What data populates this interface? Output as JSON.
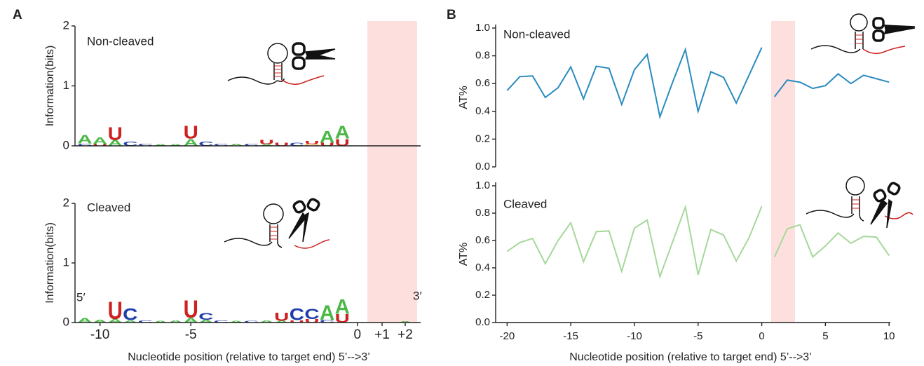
{
  "chart_data": [
    {
      "type": "logo",
      "panel": "A",
      "title": "Non-cleaved",
      "ylabel": "Information(bits)",
      "ylim": [
        0,
        2
      ],
      "yticks": [
        0,
        1,
        2
      ],
      "letter_colors": {
        "A": "#4cb848",
        "C": "#1f3fa8",
        "G": "#f5a623",
        "U": "#cc2222"
      },
      "columns": [
        {
          "letters": [
            "C",
            "A"
          ],
          "heights": [
            0.04,
            0.15
          ]
        },
        {
          "letters": [
            "U",
            "A"
          ],
          "heights": [
            0.03,
            0.12
          ]
        },
        {
          "letters": [
            "A",
            "U"
          ],
          "heights": [
            0.1,
            0.22
          ]
        },
        {
          "letters": [
            "C"
          ],
          "heights": [
            0.07
          ]
        },
        {
          "letters": [
            "C"
          ],
          "heights": [
            0.04
          ]
        },
        {
          "letters": [
            "A"
          ],
          "heights": [
            0.03
          ]
        },
        {
          "letters": [
            "A"
          ],
          "heights": [
            0.03
          ]
        },
        {
          "letters": [
            "A",
            "U"
          ],
          "heights": [
            0.12,
            0.22
          ]
        },
        {
          "letters": [
            "C"
          ],
          "heights": [
            0.07
          ]
        },
        {
          "letters": [
            "C"
          ],
          "heights": [
            0.04
          ]
        },
        {
          "letters": [
            "A"
          ],
          "heights": [
            0.04
          ]
        },
        {
          "letters": [
            "C"
          ],
          "heights": [
            0.04
          ]
        },
        {
          "letters": [
            "A",
            "U"
          ],
          "heights": [
            0.03,
            0.07
          ]
        },
        {
          "letters": [
            "U"
          ],
          "heights": [
            0.05
          ]
        },
        {
          "letters": [
            "C"
          ],
          "heights": [
            0.05
          ]
        },
        {
          "letters": [
            "G",
            "U"
          ],
          "heights": [
            0.03,
            0.05
          ]
        },
        {
          "letters": [
            "U",
            "A"
          ],
          "heights": [
            0.05,
            0.2
          ]
        },
        {
          "letters": [
            "U",
            "A"
          ],
          "heights": [
            0.12,
            0.22
          ]
        },
        {
          "letters": [],
          "heights": []
        },
        {
          "letters": [],
          "heights": []
        },
        {
          "letters": [],
          "heights": []
        }
      ]
    },
    {
      "type": "logo",
      "title": "Cleaved",
      "ylabel": "Information(bits)",
      "ylim": [
        0,
        2
      ],
      "yticks": [
        0,
        1,
        2
      ],
      "five_prime": "5′",
      "three_prime": "3′",
      "xlabel": "Nucleotide position (relative to target end) 5’-->3’",
      "letter_colors": {
        "A": "#4cb848",
        "C": "#1f3fa8",
        "G": "#f5a623",
        "U": "#cc2222"
      },
      "categories": [
        null,
        "-10",
        null,
        null,
        null,
        null,
        null,
        "-5",
        null,
        null,
        null,
        null,
        null,
        null,
        null,
        null,
        null,
        null,
        "0",
        "+1",
        "+2"
      ],
      "columns": [
        {
          "letters": [
            "A"
          ],
          "heights": [
            0.08
          ]
        },
        {
          "letters": [
            "A"
          ],
          "heights": [
            0.05
          ]
        },
        {
          "letters": [
            "A",
            "U"
          ],
          "heights": [
            0.06,
            0.3
          ]
        },
        {
          "letters": [
            "A",
            "C"
          ],
          "heights": [
            0.04,
            0.2
          ]
        },
        {
          "letters": [
            "C"
          ],
          "heights": [
            0.04
          ]
        },
        {
          "letters": [
            "A"
          ],
          "heights": [
            0.03
          ]
        },
        {
          "letters": [
            "A"
          ],
          "heights": [
            0.04
          ]
        },
        {
          "letters": [
            "A",
            "U"
          ],
          "heights": [
            0.08,
            0.3
          ]
        },
        {
          "letters": [
            "A",
            "C"
          ],
          "heights": [
            0.05,
            0.12
          ]
        },
        {
          "letters": [
            "C"
          ],
          "heights": [
            0.04
          ]
        },
        {
          "letters": [
            "A"
          ],
          "heights": [
            0.03
          ]
        },
        {
          "letters": [
            "C"
          ],
          "heights": [
            0.03
          ]
        },
        {
          "letters": [
            "A"
          ],
          "heights": [
            0.04
          ]
        },
        {
          "letters": [
            "A",
            "U"
          ],
          "heights": [
            0.03,
            0.14
          ]
        },
        {
          "letters": [
            "U",
            "C"
          ],
          "heights": [
            0.04,
            0.2
          ]
        },
        {
          "letters": [
            "U",
            "C"
          ],
          "heights": [
            0.06,
            0.18
          ]
        },
        {
          "letters": [
            "C",
            "A"
          ],
          "heights": [
            0.05,
            0.25
          ]
        },
        {
          "letters": [
            "U",
            "A"
          ],
          "heights": [
            0.15,
            0.25
          ]
        },
        {
          "letters": [],
          "heights": []
        },
        {
          "letters": [],
          "heights": []
        },
        {
          "letters": [
            "A"
          ],
          "heights": [
            0.02
          ]
        }
      ]
    },
    {
      "type": "line",
      "panel": "B",
      "title": "Non-cleaved",
      "ylabel": "AT%",
      "xlim": [
        -20.9,
        10.1
      ],
      "ylim": [
        0,
        1
      ],
      "yticks": [
        {
          "value": 0,
          "label": "0.0"
        },
        {
          "value": 0.2,
          "label": "0.2"
        },
        {
          "value": 0.4,
          "label": "0.4"
        },
        {
          "value": 0.6,
          "label": "0.6"
        },
        {
          "value": 0.8,
          "label": "0.8"
        },
        {
          "value": 1,
          "label": "1.0"
        }
      ],
      "series": [
        {
          "color": "#2a8bbf",
          "x": [
            -20,
            -19,
            -18,
            -17,
            -16,
            -15,
            -14,
            -13,
            -12,
            -11,
            -10,
            -9,
            -8,
            -7,
            -6,
            -5,
            -4,
            -3,
            -2,
            -1,
            0
          ],
          "values": [
            0.55,
            0.65,
            0.655,
            0.5,
            0.57,
            0.72,
            0.49,
            0.725,
            0.71,
            0.45,
            0.7,
            0.81,
            0.36,
            0.61,
            0.845,
            0.4,
            0.685,
            0.645,
            0.46,
            0.66,
            0.86
          ]
        },
        {
          "color": "#2a8bbf",
          "x": [
            1,
            2,
            3,
            4,
            5,
            6,
            7,
            8,
            9,
            10
          ],
          "values": [
            0.505,
            0.625,
            0.61,
            0.565,
            0.585,
            0.67,
            0.6,
            0.66,
            0.635,
            0.61
          ]
        }
      ]
    },
    {
      "type": "line",
      "title": "Cleaved",
      "ylabel": "AT%",
      "xlabel": "Nucleotide position (relative to target end) 5’-->3’",
      "xlim": [
        -20.9,
        10.1
      ],
      "ylim": [
        0,
        1
      ],
      "xticks": [
        -20,
        -15,
        -10,
        -5,
        0,
        5,
        10
      ],
      "yticks": [
        {
          "value": 0,
          "label": "0.0"
        },
        {
          "value": 0.2,
          "label": "0.2"
        },
        {
          "value": 0.4,
          "label": "0.4"
        },
        {
          "value": 0.6,
          "label": "0.6"
        },
        {
          "value": 0.8,
          "label": "0.8"
        },
        {
          "value": 1,
          "label": "1.0"
        }
      ],
      "series": [
        {
          "color": "#a6d89a",
          "x": [
            -20,
            -19,
            -18,
            -17,
            -16,
            -15,
            -14,
            -13,
            -12,
            -11,
            -10,
            -9,
            -8,
            -7,
            -6,
            -5,
            -4,
            -3,
            -2,
            -1,
            0
          ],
          "values": [
            0.52,
            0.585,
            0.615,
            0.43,
            0.6,
            0.73,
            0.445,
            0.665,
            0.67,
            0.375,
            0.69,
            0.75,
            0.335,
            0.59,
            0.845,
            0.35,
            0.68,
            0.64,
            0.45,
            0.62,
            0.85
          ]
        },
        {
          "color": "#a6d89a",
          "x": [
            1,
            2,
            3,
            4,
            5,
            6,
            7,
            8,
            9,
            10
          ],
          "values": [
            0.48,
            0.685,
            0.715,
            0.48,
            0.56,
            0.655,
            0.58,
            0.63,
            0.625,
            0.49
          ]
        }
      ]
    }
  ]
}
